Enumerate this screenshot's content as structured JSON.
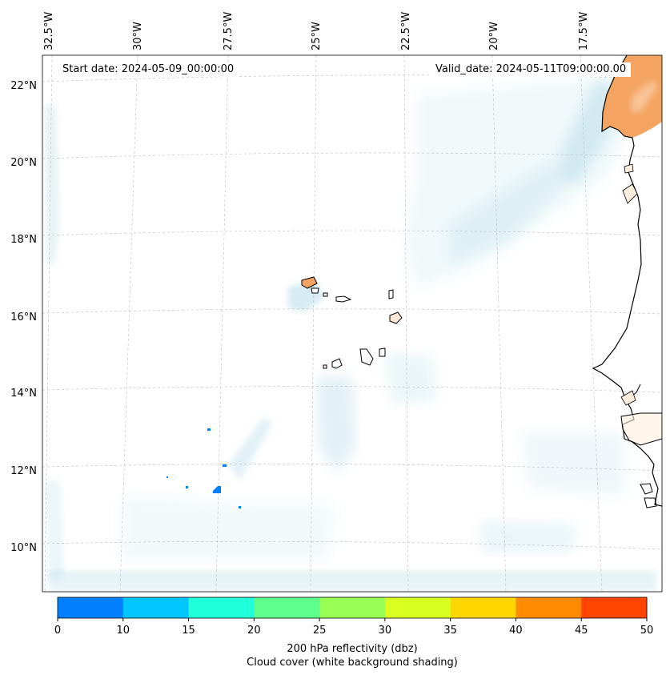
{
  "header": {
    "start_date": "Start date: 2024-05-09_00:00:00",
    "valid_date": "Valid_date: 2024-05-11T09:00:00.00"
  },
  "axes": {
    "longitude_labels": [
      "32.5°W",
      "30°W",
      "27.5°W",
      "25°W",
      "22.5°W",
      "20°W",
      "17.5°W"
    ],
    "latitude_labels": [
      "22°N",
      "20°N",
      "18°N",
      "16°N",
      "14°N",
      "12°N",
      "10°N"
    ]
  },
  "colorbar": {
    "ticks": [
      "0",
      "10",
      "15",
      "20",
      "25",
      "30",
      "35",
      "40",
      "45",
      "50"
    ],
    "colors": [
      "#0080ff",
      "#00c5ff",
      "#20ffd9",
      "#5dff8d",
      "#9aff55",
      "#d8ff20",
      "#ffd700",
      "#ff8c00",
      "#ff4500"
    ],
    "label_line1": "200 hPa reflectivity (dbz)",
    "label_line2": "Cloud cover (white background shading)"
  },
  "colors": {
    "land": "#f4a460",
    "cloud": "#add8e6",
    "coast": "#000000",
    "grid": "#bbbbbb"
  }
}
